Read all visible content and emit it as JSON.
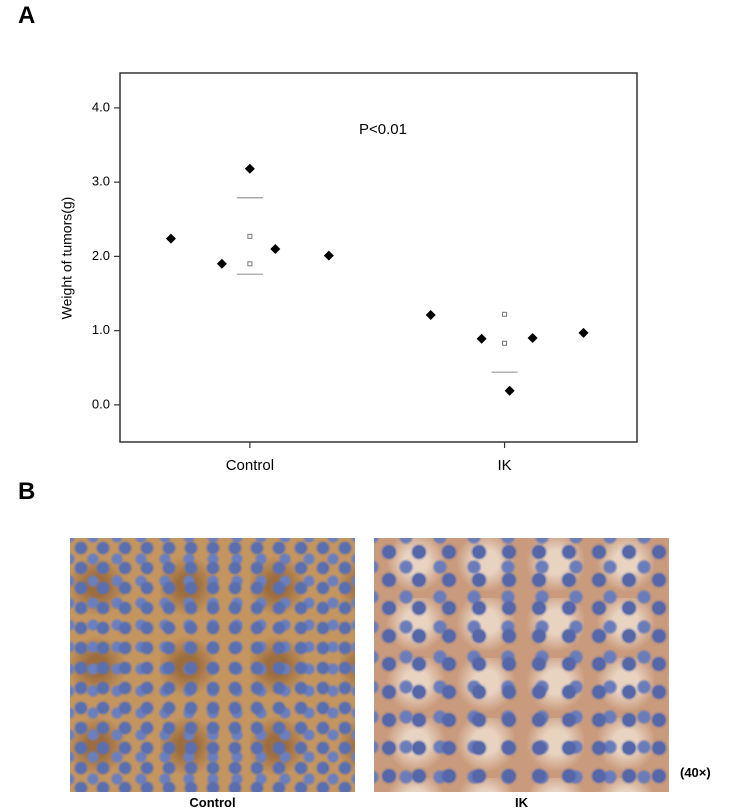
{
  "panel_a_label": "A",
  "chart_data": {
    "type": "scatter",
    "y_label": "Weight of tumors(g)",
    "annotation": "P<0.01",
    "xlim": [
      0.49,
      2.52
    ],
    "xticks": [
      {
        "value": 1,
        "label": "Control"
      },
      {
        "value": 2,
        "label": "IK"
      }
    ],
    "ylim": [
      -0.5,
      4.47
    ],
    "yticks": [
      {
        "value": 0,
        "label": "0.0"
      },
      {
        "value": 1,
        "label": "1.0"
      },
      {
        "value": 2,
        "label": "2.0"
      },
      {
        "value": 3,
        "label": "3.0"
      },
      {
        "value": 4,
        "label": "4.0"
      }
    ],
    "series": [
      {
        "color": "#000000",
        "marker": "diamond",
        "x": [
          0.69,
          0.89,
          1.0,
          1.1,
          1.31,
          1.71,
          1.91,
          2.02,
          2.11,
          2.31
        ],
        "values": [
          2.24,
          1.9,
          3.18,
          2.1,
          2.01,
          1.21,
          0.89,
          0.19,
          0.9,
          0.97
        ]
      },
      {
        "color": "#999999",
        "marker": "dash",
        "x": [
          1.0,
          1.0,
          2.0
        ],
        "values": [
          2.79,
          1.76,
          0.44
        ]
      },
      {
        "color": "#777777",
        "marker": "small",
        "x": [
          1.0,
          1.0,
          2.0,
          2.0
        ],
        "values": [
          2.27,
          1.9,
          0.83,
          1.22
        ]
      }
    ]
  },
  "panel_b": {
    "label": "B",
    "captions": [
      "Control",
      "IK"
    ],
    "magnification": "(40×)"
  }
}
